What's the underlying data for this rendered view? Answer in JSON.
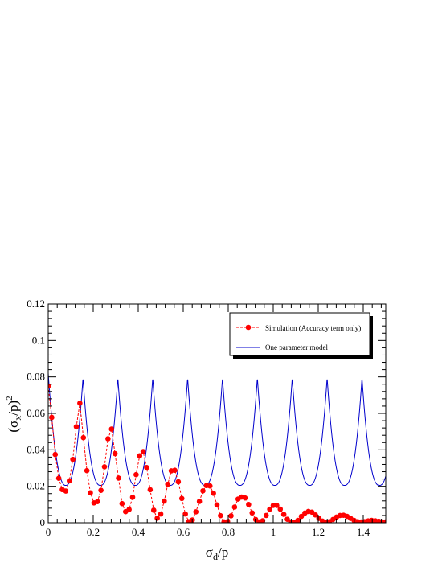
{
  "chart_data": {
    "type": "line",
    "title": "",
    "xlabel": {
      "base": "σ",
      "sub": "d",
      "rest": "/p"
    },
    "ylabel": {
      "open": "(σ",
      "sub": "x",
      "rest": "/p)",
      "sup": "2"
    },
    "xlim": [
      0,
      1.5
    ],
    "ylim": [
      0,
      0.12
    ],
    "x_ticks": [
      0,
      0.2,
      0.4,
      0.6,
      0.8,
      1,
      1.2,
      1.4
    ],
    "x_tick_labels": [
      "0",
      "0.2",
      "0.4",
      "0.6",
      "0.8",
      "1",
      "1.2",
      "1.4"
    ],
    "y_ticks": [
      0,
      0.02,
      0.04,
      0.06,
      0.08,
      0.1,
      0.12
    ],
    "y_tick_labels": [
      "0",
      "0.02",
      "0.04",
      "0.06",
      "0.08",
      "0.1",
      "0.12"
    ],
    "grid": false,
    "legend_position": "top-right",
    "series": [
      {
        "name": "Simulation (Accuracy term only)",
        "style": "dashed-markers",
        "color": "#ff0000",
        "x": [
          0.0,
          0.0156,
          0.0312,
          0.0469,
          0.0625,
          0.0781,
          0.0938,
          0.1094,
          0.125,
          0.1406,
          0.1563,
          0.1719,
          0.1875,
          0.2031,
          0.2188,
          0.2344,
          0.25,
          0.2656,
          0.2813,
          0.2969,
          0.3125,
          0.3281,
          0.3438,
          0.3594,
          0.375,
          0.3906,
          0.4063,
          0.4219,
          0.4375,
          0.4531,
          0.4688,
          0.4844,
          0.5,
          0.5156,
          0.5313,
          0.5469,
          0.5625,
          0.5781,
          0.5938,
          0.6094,
          0.625,
          0.6406,
          0.6563,
          0.6719,
          0.6875,
          0.7031,
          0.7188,
          0.7344,
          0.75,
          0.7656,
          0.7813,
          0.7969,
          0.8125,
          0.8281,
          0.8438,
          0.8594,
          0.875,
          0.8906,
          0.9063,
          0.9219,
          0.9375,
          0.9531,
          0.9688,
          0.9844,
          1.0,
          1.0156,
          1.0313,
          1.0469,
          1.0625,
          1.0781,
          1.0938,
          1.1094,
          1.125,
          1.1406,
          1.1563,
          1.1719,
          1.1875,
          1.2031,
          1.2188,
          1.2344,
          1.25,
          1.2656,
          1.2813,
          1.2969,
          1.3125,
          1.3281,
          1.3438,
          1.3594,
          1.375,
          1.3906,
          1.4063,
          1.4219,
          1.4375,
          1.4531,
          1.4688,
          1.4844,
          1.5
        ],
        "y": [
          0.075,
          0.0578,
          0.0374,
          0.0244,
          0.0182,
          0.0174,
          0.023,
          0.0348,
          0.0527,
          0.0656,
          0.0467,
          0.0286,
          0.0164,
          0.0109,
          0.0116,
          0.0178,
          0.0307,
          0.0461,
          0.0514,
          0.0379,
          0.0245,
          0.0105,
          0.0061,
          0.0073,
          0.014,
          0.0264,
          0.0367,
          0.039,
          0.0303,
          0.0181,
          0.0069,
          0.0025,
          0.0048,
          0.0119,
          0.0211,
          0.0285,
          0.0288,
          0.0225,
          0.0133,
          0.0048,
          0.0006,
          0.0015,
          0.006,
          0.0117,
          0.0175,
          0.0204,
          0.0202,
          0.0162,
          0.0098,
          0.0039,
          0.0005,
          0.0006,
          0.0038,
          0.0086,
          0.013,
          0.0141,
          0.0136,
          0.01,
          0.0054,
          0.0018,
          0.0004,
          0.0011,
          0.004,
          0.0074,
          0.0095,
          0.0095,
          0.0075,
          0.0046,
          0.0019,
          0.0004,
          0.0002,
          0.0013,
          0.0035,
          0.0053,
          0.0062,
          0.0058,
          0.0043,
          0.0024,
          0.0009,
          0.0003,
          0.0006,
          0.0018,
          0.0031,
          0.004,
          0.0041,
          0.0035,
          0.0024,
          0.0013,
          0.0006,
          0.0004,
          0.0006,
          0.001,
          0.0013,
          0.0011,
          0.0008,
          0.0004,
          0.0005
        ]
      },
      {
        "name": "One parameter model",
        "style": "solid",
        "color": "#0000cc",
        "function": "periodic cusp-shaped curve, period 0.155, minima 0.0205, maxima 0.0795"
      }
    ]
  }
}
